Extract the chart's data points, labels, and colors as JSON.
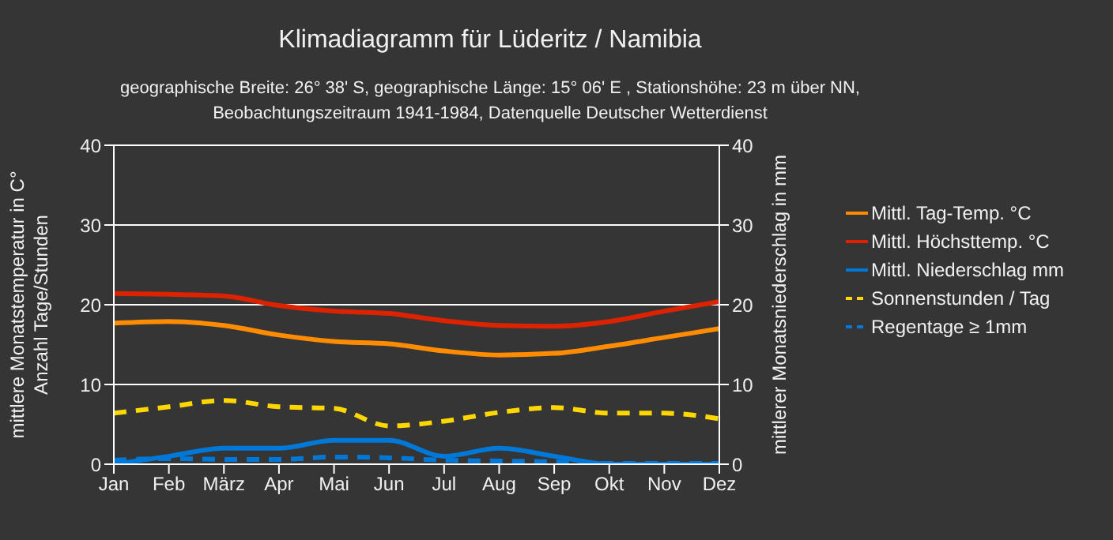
{
  "chart_data": {
    "type": "line",
    "title": "Klimadiagramm für  Lüderitz / Namibia",
    "subtitle": "geographische Breite: 26° 38' S, geographische Länge: 15° 06' E , Stationshöhe: 23 m über NN, Beobachtungszeitraum 1941-1984, Datenquelle Deutscher Wetterdienst",
    "ylabel": "mittlere Monatstemperatur in C° Anzahl Tage/Stunden",
    "y2label": "mittlerer Monatsniederschlag in mm",
    "categories": [
      "Jan",
      "Feb",
      "März",
      "Apr",
      "Mai",
      "Jun",
      "Jul",
      "Aug",
      "Sep",
      "Okt",
      "Nov",
      "Dez"
    ],
    "series": [
      {
        "name": "Mittl. Tag-Temp. °C",
        "color": "#ff8c00",
        "line_style": "solid",
        "values": [
          17.7,
          17.9,
          17.4,
          16.2,
          15.4,
          15.1,
          14.2,
          13.7,
          13.9,
          14.8,
          15.9,
          17.0
        ]
      },
      {
        "name": "Mittl. Höchsttemp. °C",
        "color": "#dd2200",
        "line_style": "solid",
        "values": [
          21.4,
          21.3,
          21.1,
          19.9,
          19.2,
          18.9,
          18.0,
          17.4,
          17.3,
          17.9,
          19.2,
          20.4
        ]
      },
      {
        "name": "Mittl. Niederschlag mm",
        "color": "#0078d7",
        "line_style": "solid",
        "axis": "y2",
        "values": [
          0,
          1,
          2,
          2,
          3,
          3,
          1,
          2,
          1,
          0,
          0,
          0
        ]
      },
      {
        "name": "Sonnenstunden / Tag",
        "color": "#ffd700",
        "line_style": "dashed",
        "values": [
          6.4,
          7.2,
          8.0,
          7.2,
          7.0,
          4.8,
          5.4,
          6.5,
          7.1,
          6.4,
          6.4,
          5.7
        ]
      },
      {
        "name": "Regentage ≥ 1mm",
        "color": "#0078d7",
        "line_style": "dashed",
        "values": [
          0.5,
          0.7,
          0.6,
          0.6,
          0.9,
          0.8,
          0.5,
          0.4,
          0.3,
          0.1,
          0.1,
          0.1
        ]
      }
    ],
    "ylim": [
      0,
      40
    ],
    "yticks": [
      0,
      10,
      20,
      30,
      40
    ],
    "y2lim": [
      0,
      40
    ],
    "y2ticks": [
      0,
      10,
      20,
      30,
      40
    ],
    "grid": "y",
    "legend": "right",
    "marker": "none"
  }
}
